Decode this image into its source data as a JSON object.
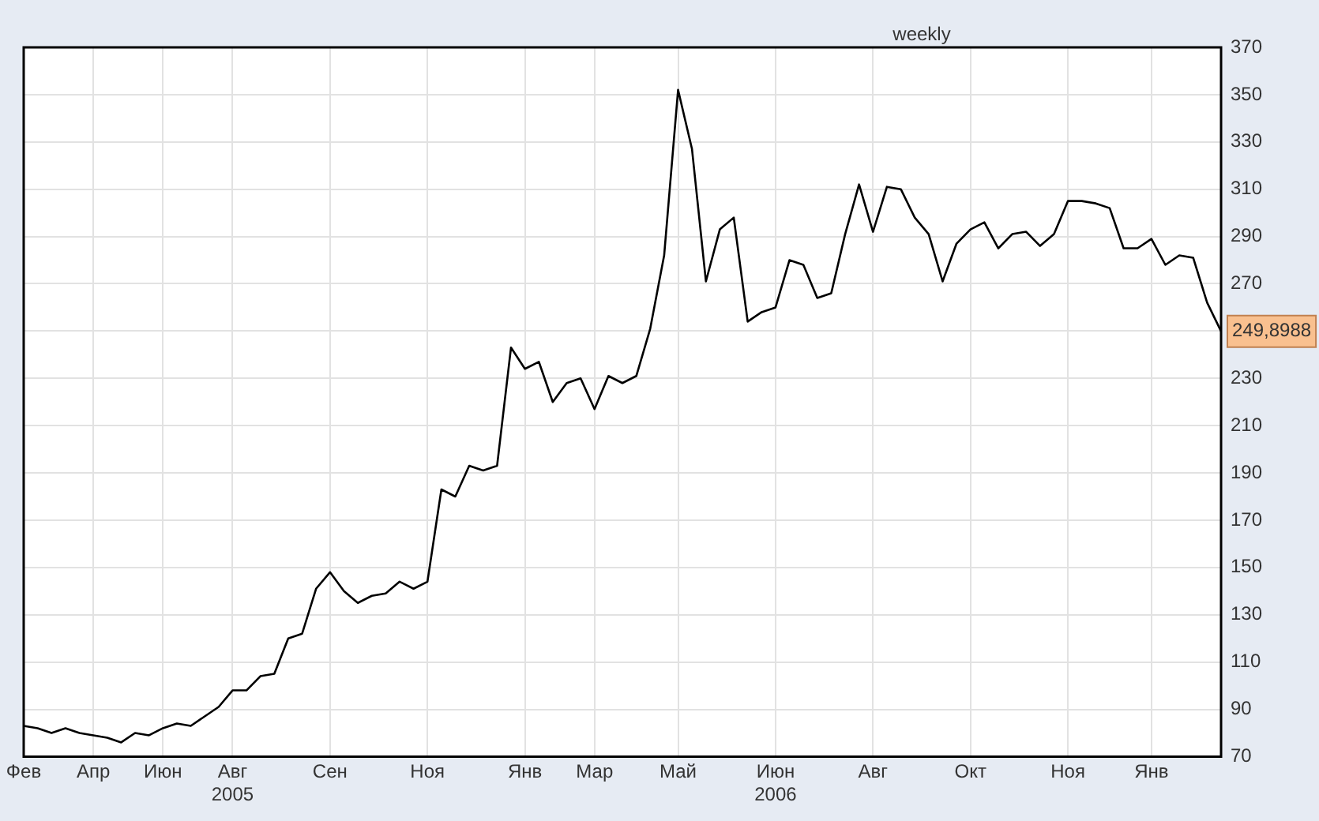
{
  "chart_data": {
    "type": "line",
    "title": "weekly",
    "categories": [
      "Фев",
      null,
      null,
      null,
      null,
      "Апр",
      null,
      null,
      null,
      null,
      "Июн",
      null,
      null,
      null,
      null,
      "Авг\n2005",
      null,
      null,
      null,
      null,
      null,
      null,
      "Сен",
      null,
      null,
      null,
      null,
      null,
      null,
      "Ноя",
      null,
      null,
      null,
      null,
      null,
      null,
      "Янв",
      null,
      null,
      null,
      null,
      "Мар",
      null,
      null,
      null,
      null,
      null,
      "Май",
      null,
      null,
      null,
      null,
      null,
      null,
      "Июн\n2006",
      null,
      null,
      null,
      null,
      null,
      null,
      "Авг",
      null,
      null,
      null,
      null,
      null,
      null,
      "Окт",
      null,
      null,
      null,
      null,
      null,
      null,
      "Ноя",
      null,
      null,
      null,
      null,
      null,
      "Янв",
      null,
      null,
      null,
      null,
      null
    ],
    "series": [
      {
        "color": "#000000",
        "values": [
          83,
          82,
          80,
          82,
          80,
          79,
          78,
          76,
          80,
          79,
          82,
          84,
          83,
          87,
          91,
          98,
          98,
          104,
          105,
          120,
          122,
          141,
          148,
          140,
          135,
          138,
          139,
          144,
          141,
          144,
          183,
          180,
          193,
          191,
          193,
          243,
          234,
          237,
          220,
          228,
          230,
          217,
          231,
          228,
          231,
          251,
          282,
          352,
          327,
          271,
          293,
          298,
          254,
          258,
          260,
          280,
          278,
          264,
          266,
          291,
          312,
          292,
          311,
          310,
          298,
          291,
          271,
          287,
          293,
          296,
          285,
          291,
          292,
          286,
          291,
          305,
          305,
          304,
          302,
          285,
          285,
          289,
          278,
          282,
          281,
          262,
          249.8988
        ],
        "value_labels": [
          null,
          null,
          null,
          null,
          null,
          null,
          null,
          null,
          null,
          null,
          null,
          null,
          null,
          null,
          null,
          null,
          null,
          null,
          null,
          null,
          null,
          null,
          null,
          null,
          null,
          null,
          null,
          null,
          null,
          null,
          null,
          null,
          null,
          null,
          null,
          null,
          null,
          null,
          null,
          null,
          null,
          null,
          null,
          null,
          null,
          null,
          null,
          null,
          null,
          null,
          null,
          null,
          null,
          null,
          null,
          null,
          null,
          null,
          null,
          null,
          null,
          null,
          null,
          null,
          null,
          null,
          null,
          null,
          null,
          null,
          null,
          null,
          null,
          null,
          null,
          null,
          null,
          null,
          null,
          null,
          null,
          null,
          null,
          null,
          null,
          null,
          "249,8988"
        ]
      }
    ],
    "ylim": [
      70,
      370
    ],
    "yticks": [
      70,
      90,
      110,
      130,
      150,
      170,
      190,
      210,
      230,
      {
        "value": 250,
        "label": null
      },
      270,
      290,
      310,
      330,
      350,
      370
    ],
    "grid": true,
    "legend": false,
    "marker": "none",
    "line_style": "solid"
  }
}
